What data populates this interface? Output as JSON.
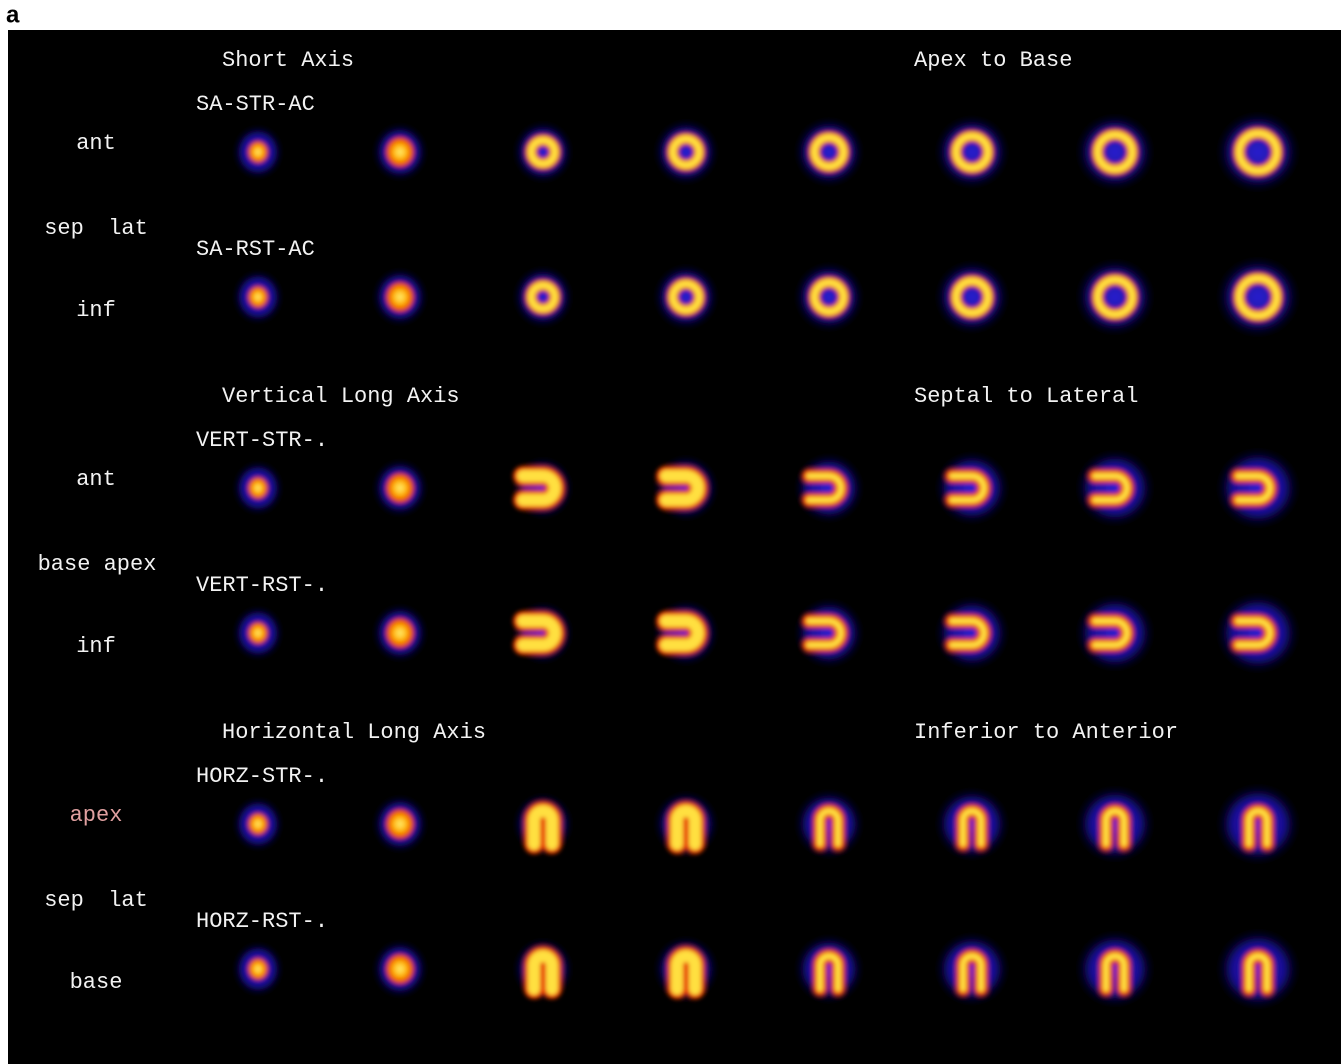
{
  "panel_label": "a",
  "sections": [
    {
      "title": "Short Axis",
      "direction": "Apex to Base",
      "orientation": {
        "top": "ant",
        "left": "sep",
        "right": "lat",
        "bottom": "inf"
      },
      "rows": [
        "SA-STR-AC",
        "SA-RST-AC"
      ]
    },
    {
      "title": "Vertical Long Axis",
      "direction": "Septal to Lateral",
      "orientation": {
        "top": "ant",
        "left": "base",
        "right": "apex",
        "bottom": "inf"
      },
      "rows": [
        "VERT-STR-.",
        "VERT-RST-."
      ]
    },
    {
      "title": "Horizontal Long Axis",
      "direction": "Inferior to Anterior",
      "orientation": {
        "top": "apex",
        "left": "sep",
        "right": "lat",
        "bottom": "base"
      },
      "rows": [
        "HORZ-STR-.",
        "HORZ-RST-."
      ]
    }
  ]
}
